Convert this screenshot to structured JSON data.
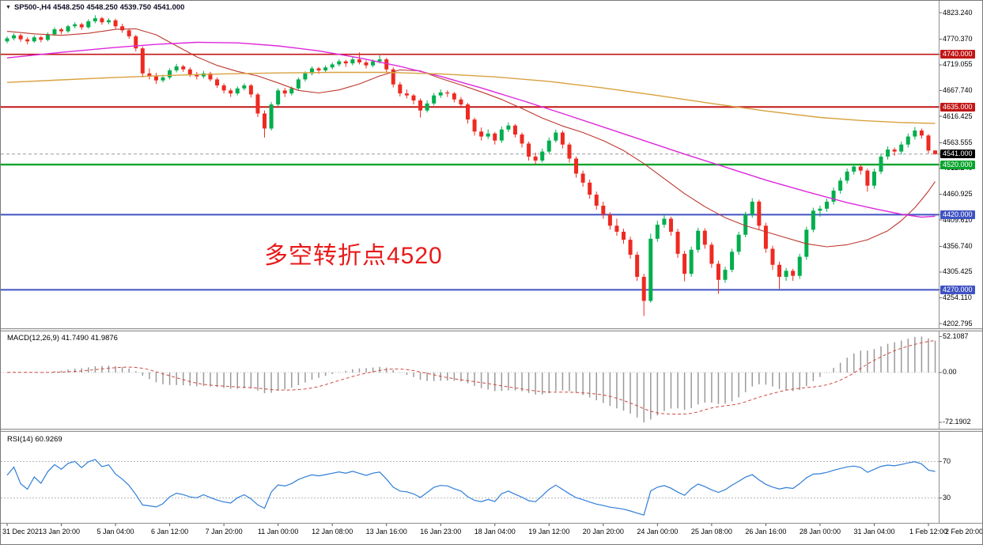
{
  "header": {
    "dropdown_icon": "▼",
    "symbol_line": "SP500-,H4 4548.250 4548.250 4539.750 4541.000"
  },
  "main_panel": {
    "annotation": "多空转折点4520"
  },
  "macd_panel": {
    "label": "MACD(12,26,9) 41.7490 41.9876"
  },
  "rsi_panel": {
    "label": "RSI(14) 60.9269"
  },
  "chart_data": {
    "type": "candlestick",
    "symbol": "SP500-",
    "timeframe": "H4",
    "current_ohlc": {
      "open": 4548.25,
      "high": 4548.25,
      "low": 4539.75,
      "close": 4541.0
    },
    "price_axis": {
      "min": 4202.795,
      "max": 4823.24,
      "ticks": [
        "4823.240",
        "4770.370",
        "4719.055",
        "4667.740",
        "4616.425",
        "4563.555",
        "4512.240",
        "4460.925",
        "4409.610",
        "4356.740",
        "4305.425",
        "4254.110",
        "4202.795"
      ]
    },
    "levels": [
      {
        "label": "4740.000",
        "value": 4740.0,
        "color": "#c21616",
        "width": 1.6
      },
      {
        "label": "4635.000",
        "value": 4635.0,
        "color": "#c21616",
        "width": 2
      },
      {
        "label": "4520.000",
        "value": 4520.0,
        "color": "#0aa52c",
        "width": 2.4
      },
      {
        "label": "4420.000",
        "value": 4420.0,
        "color": "#4053c2",
        "width": 2
      },
      {
        "label": "4270.000",
        "value": 4270.0,
        "color": "#4053c2",
        "width": 2
      }
    ],
    "current_price": {
      "label": "4541.000",
      "value": 4541.0,
      "chip_color": "#000000"
    },
    "annotation": {
      "text": "多空转折点4520",
      "color": "#e81a1a"
    },
    "candles": [
      [
        4766,
        4776,
        4762,
        4772
      ],
      [
        4772,
        4782,
        4768,
        4778
      ],
      [
        4778,
        4781,
        4765,
        4770
      ],
      [
        4770,
        4774,
        4760,
        4766
      ],
      [
        4766,
        4778,
        4763,
        4774
      ],
      [
        4774,
        4777,
        4764,
        4769
      ],
      [
        4769,
        4784,
        4766,
        4780
      ],
      [
        4780,
        4794,
        4777,
        4790
      ],
      [
        4790,
        4793,
        4780,
        4786
      ],
      [
        4786,
        4799,
        4783,
        4796
      ],
      [
        4796,
        4804,
        4792,
        4800
      ],
      [
        4800,
        4803,
        4789,
        4794
      ],
      [
        4794,
        4810,
        4791,
        4806
      ],
      [
        4806,
        4818,
        4802,
        4812
      ],
      [
        4812,
        4815,
        4799,
        4804
      ],
      [
        4804,
        4812,
        4800,
        4808
      ],
      [
        4808,
        4811,
        4791,
        4796
      ],
      [
        4796,
        4801,
        4783,
        4788
      ],
      [
        4788,
        4791,
        4771,
        4776
      ],
      [
        4776,
        4779,
        4746,
        4752
      ],
      [
        4752,
        4756,
        4694,
        4702
      ],
      [
        4702,
        4712,
        4690,
        4696
      ],
      [
        4696,
        4703,
        4681,
        4688
      ],
      [
        4688,
        4699,
        4684,
        4694
      ],
      [
        4694,
        4712,
        4690,
        4708
      ],
      [
        4708,
        4721,
        4704,
        4716
      ],
      [
        4716,
        4719,
        4705,
        4710
      ],
      [
        4710,
        4714,
        4695,
        4700
      ],
      [
        4700,
        4705,
        4690,
        4696
      ],
      [
        4696,
        4707,
        4692,
        4702
      ],
      [
        4702,
        4705,
        4686,
        4690
      ],
      [
        4690,
        4694,
        4673,
        4678
      ],
      [
        4678,
        4682,
        4662,
        4668
      ],
      [
        4668,
        4672,
        4655,
        4662
      ],
      [
        4662,
        4676,
        4658,
        4672
      ],
      [
        4672,
        4682,
        4668,
        4678
      ],
      [
        4678,
        4681,
        4654,
        4660
      ],
      [
        4660,
        4663,
        4615,
        4622
      ],
      [
        4622,
        4628,
        4574,
        4592
      ],
      [
        4592,
        4645,
        4588,
        4640
      ],
      [
        4640,
        4672,
        4636,
        4668
      ],
      [
        4668,
        4673,
        4655,
        4662
      ],
      [
        4662,
        4676,
        4658,
        4672
      ],
      [
        4672,
        4694,
        4668,
        4690
      ],
      [
        4690,
        4706,
        4686,
        4702
      ],
      [
        4702,
        4716,
        4698,
        4712
      ],
      [
        4712,
        4715,
        4701,
        4708
      ],
      [
        4708,
        4718,
        4704,
        4714
      ],
      [
        4714,
        4724,
        4710,
        4720
      ],
      [
        4720,
        4730,
        4716,
        4726
      ],
      [
        4726,
        4729,
        4715,
        4722
      ],
      [
        4722,
        4736,
        4718,
        4730
      ],
      [
        4730,
        4744,
        4720,
        4724
      ],
      [
        4724,
        4728,
        4712,
        4718
      ],
      [
        4718,
        4730,
        4714,
        4726
      ],
      [
        4726,
        4738,
        4722,
        4730
      ],
      [
        4730,
        4733,
        4704,
        4710
      ],
      [
        4710,
        4714,
        4674,
        4680
      ],
      [
        4680,
        4685,
        4656,
        4662
      ],
      [
        4662,
        4670,
        4652,
        4658
      ],
      [
        4658,
        4661,
        4640,
        4648
      ],
      [
        4648,
        4652,
        4614,
        4628
      ],
      [
        4628,
        4648,
        4624,
        4642
      ],
      [
        4642,
        4663,
        4638,
        4658
      ],
      [
        4658,
        4670,
        4653,
        4664
      ],
      [
        4664,
        4668,
        4655,
        4662
      ],
      [
        4662,
        4665,
        4644,
        4650
      ],
      [
        4650,
        4655,
        4633,
        4640
      ],
      [
        4640,
        4643,
        4602,
        4610
      ],
      [
        4610,
        4614,
        4578,
        4586
      ],
      [
        4586,
        4594,
        4568,
        4576
      ],
      [
        4576,
        4590,
        4571,
        4582
      ],
      [
        4582,
        4585,
        4560,
        4568
      ],
      [
        4568,
        4596,
        4563,
        4590
      ],
      [
        4590,
        4604,
        4585,
        4598
      ],
      [
        4598,
        4601,
        4574,
        4580
      ],
      [
        4580,
        4584,
        4554,
        4562
      ],
      [
        4562,
        4566,
        4528,
        4536
      ],
      [
        4536,
        4544,
        4520,
        4528
      ],
      [
        4528,
        4552,
        4524,
        4546
      ],
      [
        4546,
        4574,
        4542,
        4568
      ],
      [
        4568,
        4590,
        4564,
        4584
      ],
      [
        4584,
        4588,
        4552,
        4560
      ],
      [
        4560,
        4564,
        4524,
        4532
      ],
      [
        4532,
        4536,
        4494,
        4502
      ],
      [
        4502,
        4508,
        4476,
        4484
      ],
      [
        4484,
        4490,
        4452,
        4460
      ],
      [
        4460,
        4466,
        4430,
        4438
      ],
      [
        4438,
        4446,
        4412,
        4420
      ],
      [
        4420,
        4425,
        4390,
        4398
      ],
      [
        4398,
        4412,
        4378,
        4386
      ],
      [
        4386,
        4392,
        4362,
        4370
      ],
      [
        4370,
        4376,
        4332,
        4340
      ],
      [
        4340,
        4346,
        4288,
        4296
      ],
      [
        4296,
        4302,
        4218,
        4248
      ],
      [
        4248,
        4382,
        4244,
        4372
      ],
      [
        4372,
        4408,
        4366,
        4400
      ],
      [
        4400,
        4420,
        4394,
        4412
      ],
      [
        4412,
        4416,
        4378,
        4386
      ],
      [
        4386,
        4392,
        4334,
        4342
      ],
      [
        4342,
        4348,
        4287,
        4302
      ],
      [
        4302,
        4356,
        4296,
        4350
      ],
      [
        4350,
        4394,
        4344,
        4388
      ],
      [
        4388,
        4393,
        4352,
        4360
      ],
      [
        4360,
        4365,
        4314,
        4322
      ],
      [
        4322,
        4328,
        4262,
        4290
      ],
      [
        4290,
        4316,
        4284,
        4310
      ],
      [
        4310,
        4352,
        4305,
        4346
      ],
      [
        4346,
        4386,
        4340,
        4380
      ],
      [
        4380,
        4426,
        4375,
        4420
      ],
      [
        4420,
        4453,
        4414,
        4446
      ],
      [
        4446,
        4450,
        4390,
        4398
      ],
      [
        4398,
        4404,
        4344,
        4352
      ],
      [
        4352,
        4358,
        4310,
        4320
      ],
      [
        4320,
        4326,
        4272,
        4296
      ],
      [
        4296,
        4314,
        4288,
        4308
      ],
      [
        4308,
        4312,
        4288,
        4298
      ],
      [
        4298,
        4342,
        4292,
        4336
      ],
      [
        4336,
        4396,
        4330,
        4390
      ],
      [
        4390,
        4434,
        4385,
        4428
      ],
      [
        4428,
        4438,
        4416,
        4432
      ],
      [
        4432,
        4452,
        4426,
        4446
      ],
      [
        4446,
        4474,
        4440,
        4468
      ],
      [
        4468,
        4494,
        4462,
        4488
      ],
      [
        4488,
        4512,
        4482,
        4506
      ],
      [
        4506,
        4522,
        4500,
        4516
      ],
      [
        4516,
        4520,
        4500,
        4508
      ],
      [
        4508,
        4512,
        4466,
        4478
      ],
      [
        4478,
        4512,
        4472,
        4506
      ],
      [
        4506,
        4542,
        4501,
        4536
      ],
      [
        4536,
        4556,
        4530,
        4550
      ],
      [
        4550,
        4554,
        4538,
        4546
      ],
      [
        4546,
        4566,
        4540,
        4560
      ],
      [
        4560,
        4582,
        4554,
        4576
      ],
      [
        4576,
        4595,
        4570,
        4588
      ],
      [
        4588,
        4592,
        4572,
        4578
      ],
      [
        4578,
        4581,
        4542,
        4548
      ],
      [
        4548.25,
        4548.25,
        4539.75,
        4541.0
      ]
    ],
    "moving_averages": [
      {
        "name": "fast-ma-red",
        "color": "#bd382e",
        "width": 1.1,
        "points": [
          [
            0,
            4786
          ],
          [
            4,
            4781
          ],
          [
            8,
            4778
          ],
          [
            12,
            4782
          ],
          [
            16,
            4790
          ],
          [
            19,
            4791
          ],
          [
            22,
            4779
          ],
          [
            25,
            4757
          ],
          [
            28,
            4735
          ],
          [
            31,
            4718
          ],
          [
            34,
            4706
          ],
          [
            37,
            4697
          ],
          [
            40,
            4683
          ],
          [
            43,
            4668
          ],
          [
            46,
            4663
          ],
          [
            49,
            4669
          ],
          [
            52,
            4681
          ],
          [
            55,
            4697
          ],
          [
            58,
            4709
          ],
          [
            61,
            4707
          ],
          [
            64,
            4692
          ],
          [
            67,
            4679
          ],
          [
            70,
            4665
          ],
          [
            73,
            4650
          ],
          [
            76,
            4632
          ],
          [
            79,
            4613
          ],
          [
            82,
            4597
          ],
          [
            85,
            4584
          ],
          [
            88,
            4568
          ],
          [
            91,
            4548
          ],
          [
            94,
            4522
          ],
          [
            97,
            4492
          ],
          [
            100,
            4462
          ],
          [
            103,
            4436
          ],
          [
            106,
            4414
          ],
          [
            109,
            4398
          ],
          [
            112,
            4386
          ],
          [
            115,
            4374
          ],
          [
            118,
            4362
          ],
          [
            121,
            4356
          ],
          [
            124,
            4360
          ],
          [
            127,
            4370
          ],
          [
            130,
            4388
          ],
          [
            132,
            4408
          ],
          [
            134,
            4434
          ],
          [
            135,
            4450
          ],
          [
            136,
            4467
          ],
          [
            137,
            4486
          ]
        ]
      },
      {
        "name": "mid-ma-magenta",
        "color": "#de27dd",
        "width": 1.4,
        "points": [
          [
            0,
            4733
          ],
          [
            8,
            4744
          ],
          [
            16,
            4754
          ],
          [
            22,
            4760
          ],
          [
            28,
            4764
          ],
          [
            34,
            4763
          ],
          [
            40,
            4757
          ],
          [
            46,
            4747
          ],
          [
            52,
            4733
          ],
          [
            58,
            4716
          ],
          [
            64,
            4696
          ],
          [
            70,
            4673
          ],
          [
            76,
            4648
          ],
          [
            82,
            4622
          ],
          [
            88,
            4595
          ],
          [
            94,
            4568
          ],
          [
            100,
            4541
          ],
          [
            106,
            4515
          ],
          [
            112,
            4489
          ],
          [
            118,
            4466
          ],
          [
            124,
            4444
          ],
          [
            128,
            4432
          ],
          [
            132,
            4421
          ],
          [
            135,
            4415
          ],
          [
            137,
            4417
          ]
        ]
      },
      {
        "name": "slow-ma-orange",
        "color": "#d8a13f",
        "width": 1.4,
        "points": [
          [
            0,
            4684
          ],
          [
            8,
            4689
          ],
          [
            16,
            4694
          ],
          [
            24,
            4698
          ],
          [
            32,
            4701
          ],
          [
            40,
            4703
          ],
          [
            48,
            4704
          ],
          [
            56,
            4704
          ],
          [
            64,
            4701
          ],
          [
            72,
            4695
          ],
          [
            80,
            4686
          ],
          [
            88,
            4673
          ],
          [
            96,
            4658
          ],
          [
            104,
            4642
          ],
          [
            112,
            4627
          ],
          [
            120,
            4614
          ],
          [
            126,
            4608
          ],
          [
            132,
            4604
          ],
          [
            137,
            4602
          ]
        ]
      }
    ],
    "macd": {
      "params": "12,26,9",
      "value": 41.749,
      "signal_value": 41.9876,
      "ticks": [
        {
          "label": "52.1087",
          "value": 52.1087
        },
        {
          "label": "0.00",
          "value": 0
        },
        {
          "label": "-72.1902",
          "value": -72.1902
        }
      ],
      "hist_color": "#9a9a9a",
      "signal_color": "#cd4a42"
    },
    "rsi": {
      "period": 14,
      "value": 60.9269,
      "levels": [
        70,
        30
      ],
      "ticks": [
        {
          "label": "70",
          "value": 70
        },
        {
          "label": "30",
          "value": 30
        }
      ],
      "line_color": "#2f7ed8"
    },
    "time_labels": [
      "31 Dec 2021",
      "3 Jan 20:00",
      "5 Jan 04:00",
      "6 Jan 12:00",
      "7 Jan 20:00",
      "11 Jan 00:00",
      "12 Jan 08:00",
      "13 Jan 16:00",
      "16 Jan 23:00",
      "18 Jan 04:00",
      "19 Jan 12:00",
      "20 Jan 20:00",
      "24 Jan 00:00",
      "25 Jan 08:00",
      "26 Jan 16:00",
      "28 Jan 00:00",
      "31 Jan 04:00",
      "1 Feb 12:00",
      "2 Feb 20:00"
    ],
    "colors": {
      "up": "#00ae4d",
      "down": "#ee2a21",
      "current_line": "#9a9a9a",
      "axis_line": "#8e8e8e"
    }
  }
}
